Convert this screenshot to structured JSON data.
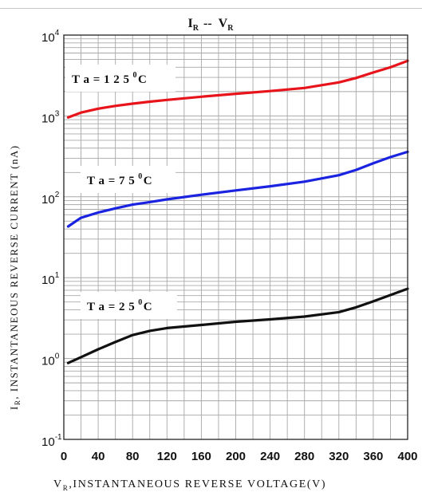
{
  "chart_data": {
    "type": "line",
    "title": {
      "main1": "I",
      "sub1": "R",
      "sep": "--",
      "main2": "V",
      "sub2": "R"
    },
    "xlabel": {
      "v": "V",
      "sub": "R",
      "rest": ",INSTANTANEOUS REVERSE VOLTAGE(V)"
    },
    "ylabel": {
      "i": "I",
      "sub": "R",
      "rest": ", INSTANTANEOUS REVERSE CURRENT (nA)"
    },
    "x_ticks": [
      0,
      40,
      80,
      120,
      160,
      200,
      240,
      280,
      320,
      360,
      400
    ],
    "xlim": [
      0,
      400
    ],
    "y_scale": "log",
    "ylim": [
      0.1,
      10000
    ],
    "y_ticks": [
      {
        "value": 0.1,
        "base": "10",
        "exp": "-1"
      },
      {
        "value": 1,
        "base": "10",
        "exp": "0"
      },
      {
        "value": 10,
        "base": "10",
        "exp": "1"
      },
      {
        "value": 100,
        "base": "10",
        "exp": "2"
      },
      {
        "value": 1000,
        "base": "10",
        "exp": "3"
      },
      {
        "value": 10000,
        "base": "10",
        "exp": "4"
      }
    ],
    "grid": true,
    "series": [
      {
        "name": "Ta = 125 °C",
        "label_text": "T a = 1 2 5",
        "label_sup": "0",
        "label_unit": "C",
        "color": "#e8141b",
        "x": [
          5,
          20,
          40,
          60,
          80,
          100,
          120,
          160,
          200,
          240,
          280,
          320,
          340,
          360,
          380,
          400
        ],
        "y": [
          960,
          1100,
          1230,
          1330,
          1420,
          1500,
          1580,
          1730,
          1880,
          2030,
          2220,
          2600,
          2950,
          3450,
          4000,
          4800
        ]
      },
      {
        "name": "Ta = 75 °C",
        "label_text": "T a = 7 5",
        "label_sup": "0",
        "label_unit": "C",
        "color": "#1a23e0",
        "x": [
          5,
          20,
          40,
          60,
          80,
          100,
          120,
          160,
          200,
          240,
          280,
          320,
          340,
          360,
          380,
          400
        ],
        "y": [
          43,
          55,
          64,
          72,
          80,
          86,
          93,
          106,
          120,
          135,
          154,
          185,
          215,
          260,
          310,
          360
        ]
      },
      {
        "name": "Ta = 25 °C",
        "label_text": "T a = 2 5",
        "label_sup": "0",
        "label_unit": "C",
        "color": "#111111",
        "x": [
          5,
          20,
          40,
          60,
          80,
          100,
          120,
          160,
          200,
          240,
          280,
          320,
          340,
          360,
          380,
          400
        ],
        "y": [
          0.88,
          1.04,
          1.3,
          1.6,
          1.95,
          2.2,
          2.38,
          2.6,
          2.85,
          3.05,
          3.3,
          3.75,
          4.3,
          5.1,
          6.1,
          7.3
        ]
      }
    ]
  },
  "colors": {
    "grid": "#a8a8a8",
    "frame": "#222222",
    "text": "#111111"
  }
}
